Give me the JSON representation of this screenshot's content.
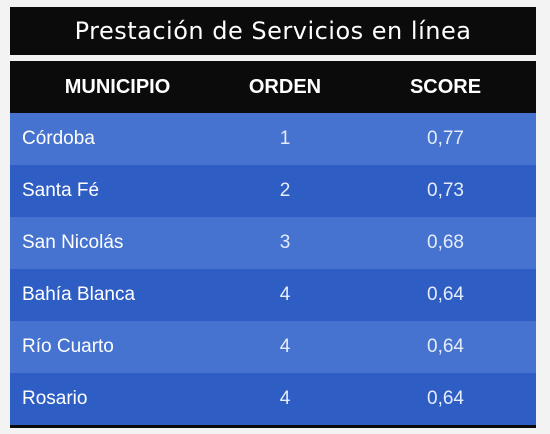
{
  "title": "Prestación de Servicios en línea",
  "headers": {
    "municipio": "MUNICIPIO",
    "orden": "ORDEN",
    "score": "SCORE"
  },
  "rows": [
    {
      "municipio": "Córdoba",
      "orden": "1",
      "score": "0,77"
    },
    {
      "municipio": "Santa Fé",
      "orden": "2",
      "score": "0,73"
    },
    {
      "municipio": "San Nicolás",
      "orden": "3",
      "score": "0,68"
    },
    {
      "municipio": "Bahía Blanca",
      "orden": "4",
      "score": "0,64"
    },
    {
      "municipio": "Río Cuarto",
      "orden": "4",
      "score": "0,64"
    },
    {
      "municipio": "Rosario",
      "orden": "4",
      "score": "0,64"
    }
  ],
  "colors": {
    "header_bg": "#0b0b0b",
    "row_light": "#4573cf",
    "row_dark": "#2e5ec4"
  }
}
